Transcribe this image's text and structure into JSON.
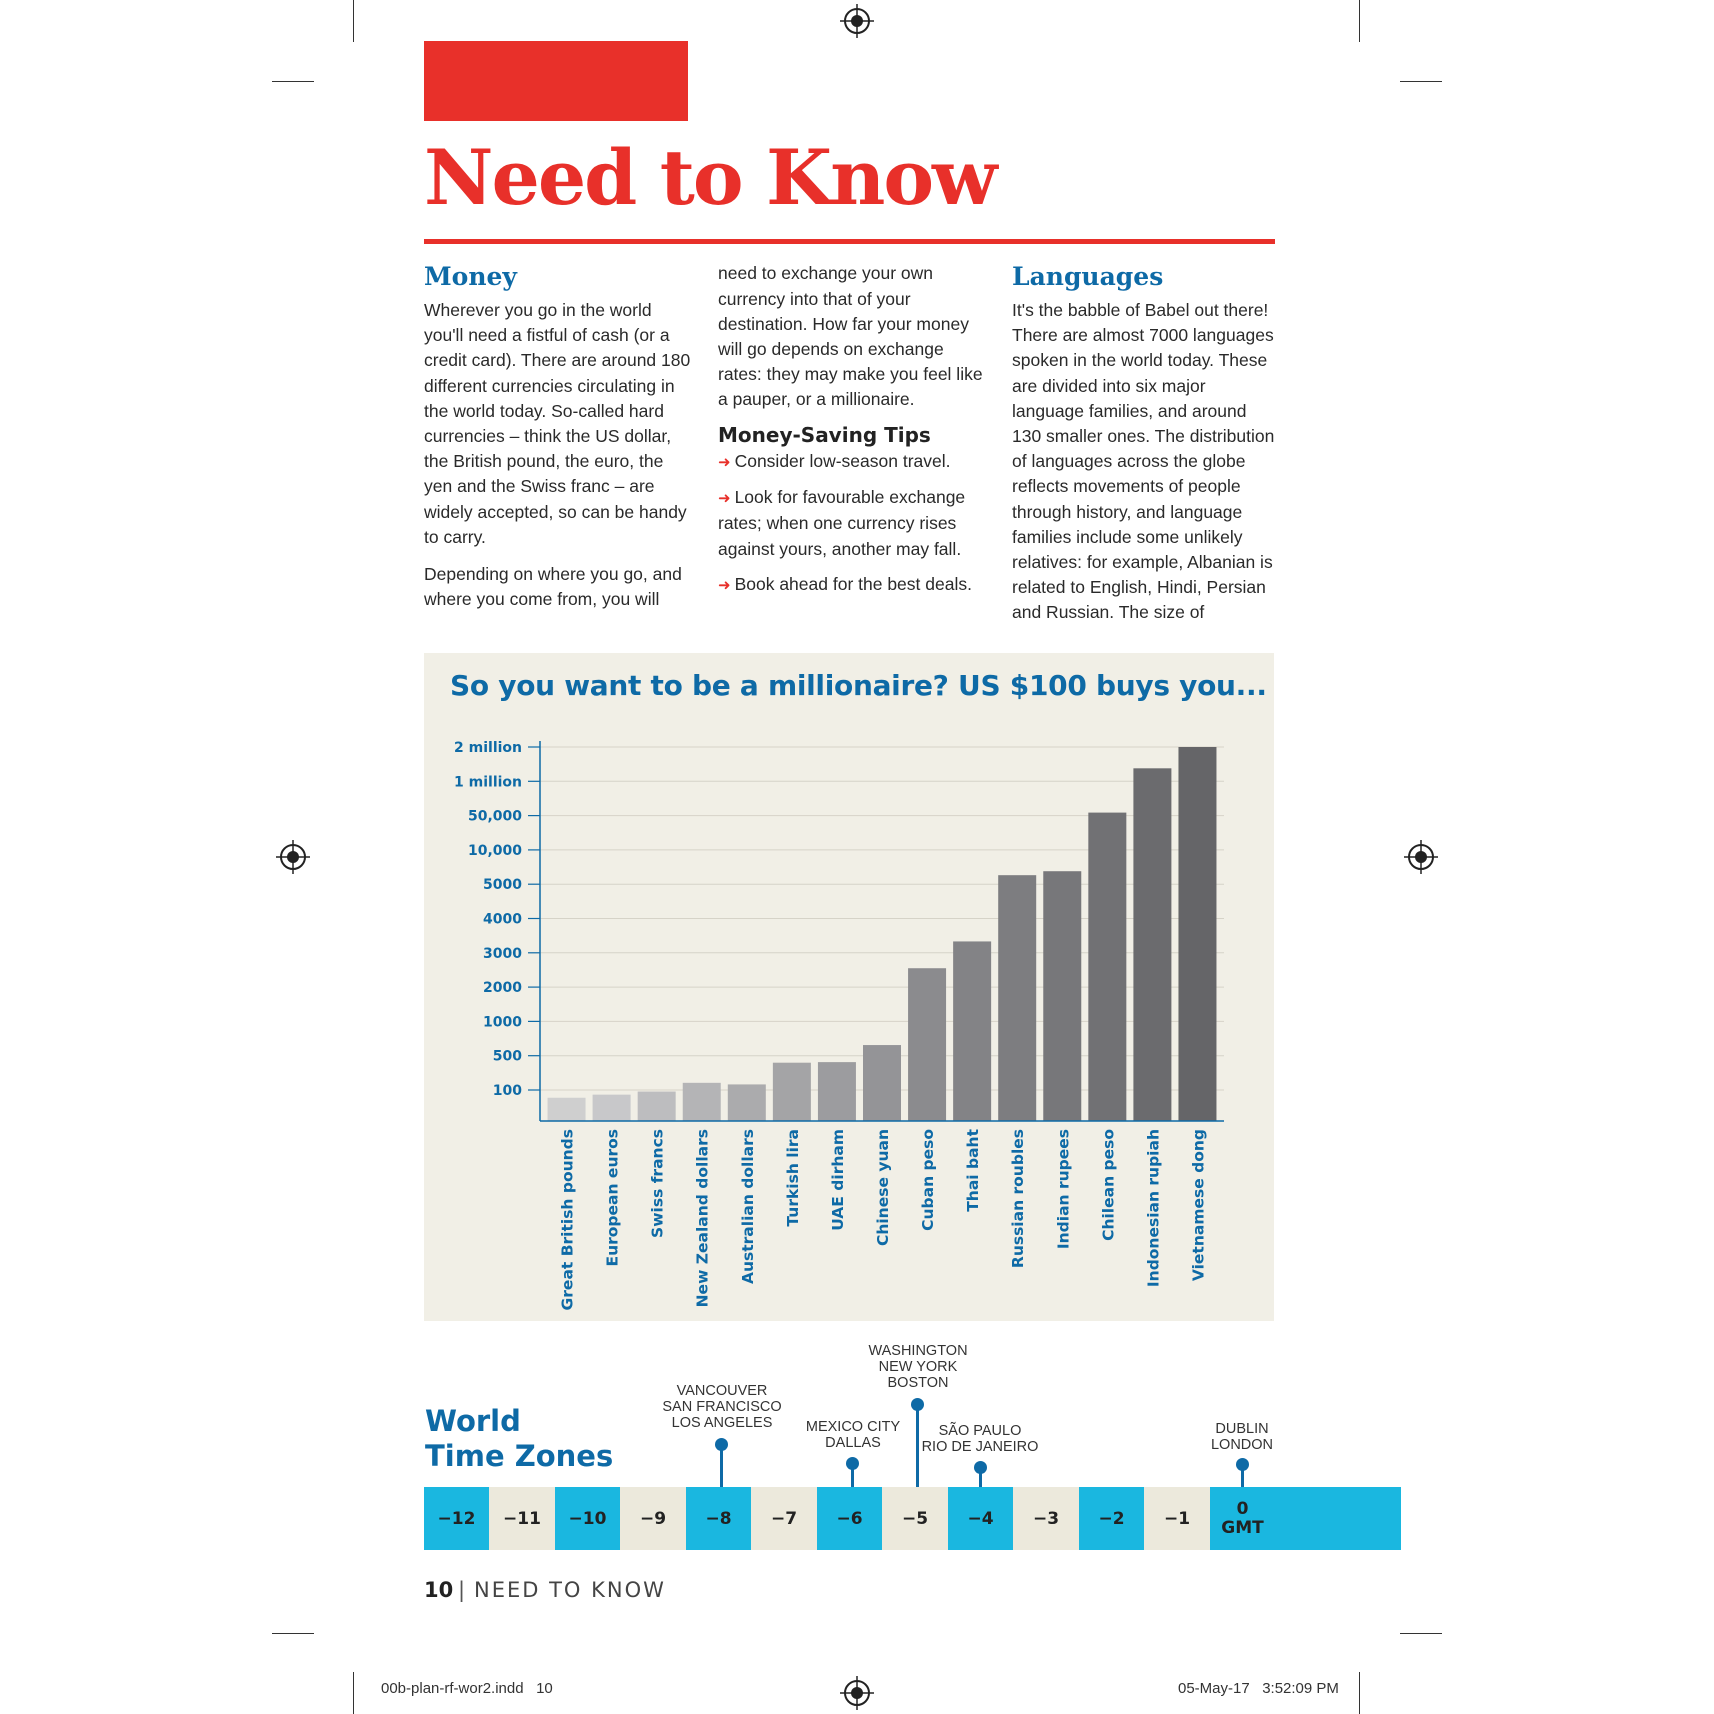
{
  "page": {
    "title": "Need to Know",
    "accent_color": "#e8302a",
    "heading_color": "#0e6aa6"
  },
  "money": {
    "heading": "Money",
    "para1": "Wherever you go in the world you'll need a fistful of cash (or a credit card). There are around 180 different currencies circulating in the world today. So-called hard currencies – think the US dollar, the British pound, the euro, the yen and the Swiss franc – are widely accepted, so can be handy to carry.",
    "para2": "Depending on where you go, and where you come from, you will need to exchange your own currency into that of your destination. How far your money will go depends on exchange rates: they may make you feel like a pauper, or a millionaire."
  },
  "tips": {
    "heading": "Money-Saving Tips",
    "items": [
      "Consider low-season travel.",
      "Look for favourable exchange rates; when one currency rises against yours, another may fall.",
      "Book ahead for the best deals."
    ]
  },
  "languages": {
    "heading": "Languages",
    "para": "It's the babble of Babel out there! There are almost 7000 languages spoken in the world today. These are divided into six major language families, and around 130 smaller ones. The distribution of languages across the globe reflects movements of people through history, and language families include some unlikely relatives: for example, Albanian is related to English, Hindi, Persian and Russian. The size of"
  },
  "chart_data": {
    "type": "bar",
    "title": "So you want to be a millionaire? US $100 buys you...",
    "y_ticks": [
      "100",
      "500",
      "1000",
      "2000",
      "3000",
      "4000",
      "5000",
      "10,000",
      "50,000",
      "1 million",
      "2 million"
    ],
    "categories": [
      "Great British pounds",
      "European euros",
      "Swiss francs",
      "New Zealand dollars",
      "Australian dollars",
      "Turkish lira",
      "UAE dirham",
      "Chinese yuan",
      "Cuban peso",
      "Thai baht",
      "Russian roubles",
      "Indian rupees",
      "Chilean peso",
      "Indonesian rupiah",
      "Vietnamese dong"
    ],
    "values": [
      75,
      85,
      95,
      140,
      130,
      360,
      370,
      620,
      2500,
      3300,
      6000,
      6500,
      65000,
      1300000,
      2200000
    ],
    "bar_colors": [
      "#cfcfcf",
      "#c8c8ca",
      "#bdbdbf",
      "#b4b4b6",
      "#ababad",
      "#a4a4a6",
      "#9c9c9f",
      "#949497",
      "#8b8b8e",
      "#838386",
      "#7d7d80",
      "#77777a",
      "#717174",
      "#6b6b6e",
      "#656568"
    ],
    "grid": true
  },
  "timezones": {
    "title_line1": "World",
    "title_line2": "Time Zones",
    "zones": [
      "−12",
      "−11",
      "−10",
      "−9",
      "−8",
      "−7",
      "−6",
      "−5",
      "−4",
      "−3",
      "−2",
      "−1",
      "0",
      "GMT"
    ],
    "colors": {
      "blue": "#1ab7e0",
      "beige": "#ece9dc"
    },
    "cities": {
      "pacific": [
        "VANCOUVER",
        "SAN FRANCISCO",
        "LOS ANGELES"
      ],
      "central": [
        "MEXICO CITY",
        "DALLAS"
      ],
      "eastern": [
        "WASHINGTON",
        "NEW YORK",
        "BOSTON"
      ],
      "brazil": [
        "SÃO PAULO",
        "RIO DE JANEIRO"
      ],
      "gmt": [
        "DUBLIN",
        "LONDON"
      ]
    }
  },
  "footer": {
    "page_number": "10",
    "separator": "|",
    "label": "NEED TO KNOW"
  },
  "slug": {
    "file": "00b-plan-rf-wor2.indd   10",
    "timestamp": "05-May-17   3:52:09 PM"
  }
}
